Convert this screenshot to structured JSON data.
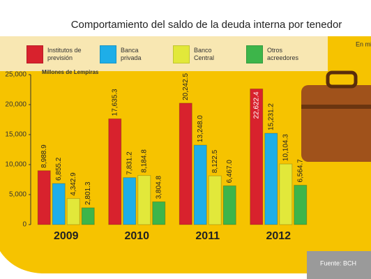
{
  "chart_data": {
    "type": "bar",
    "title": "Comportamiento del saldo de la deuda interna por tenedor",
    "subtitle": "En mi",
    "y_label": "Millones de Lempiras",
    "source": "Fuente: BCH",
    "categories": [
      "2009",
      "2010",
      "2011",
      "2012"
    ],
    "series": [
      {
        "name": "Institutos de previsión",
        "color": "#d8222d",
        "values": [
          8988.9,
          17635.3,
          20242.5,
          22622.4
        ],
        "value_labels": [
          "8,988.9",
          "17,635.3",
          "20,242.5",
          "22,622.4"
        ]
      },
      {
        "name": "Banca privada",
        "color": "#1eaee8",
        "values": [
          6855.2,
          7831.2,
          13248.0,
          15231.2
        ],
        "value_labels": [
          "6,855.2",
          "7,831.2",
          "13,248.0",
          "15,231.2"
        ]
      },
      {
        "name": "Banco Central",
        "color": "#e2e83a",
        "values": [
          4342.9,
          8184.8,
          8122.5,
          10104.3
        ],
        "value_labels": [
          "4,342.9",
          "8,184.8",
          "8,122.5",
          "10,104.3"
        ]
      },
      {
        "name": "Otros acreedores",
        "color": "#3db54a",
        "values": [
          2801.3,
          3804.8,
          6467.0,
          6564.7
        ],
        "value_labels": [
          "2,801.3",
          "3,804.8",
          "6,467.0",
          "6,564.7"
        ]
      }
    ],
    "ylim": [
      0,
      25000
    ],
    "yticks": [
      0,
      {
        "value": 5000,
        "label": "5,000"
      },
      {
        "value": 10000,
        "label": "10,000"
      },
      {
        "value": 15000,
        "label": "15,000"
      },
      {
        "value": 20000,
        "label": "20,000"
      },
      {
        "value": 25000,
        "label": "25,000"
      }
    ]
  }
}
